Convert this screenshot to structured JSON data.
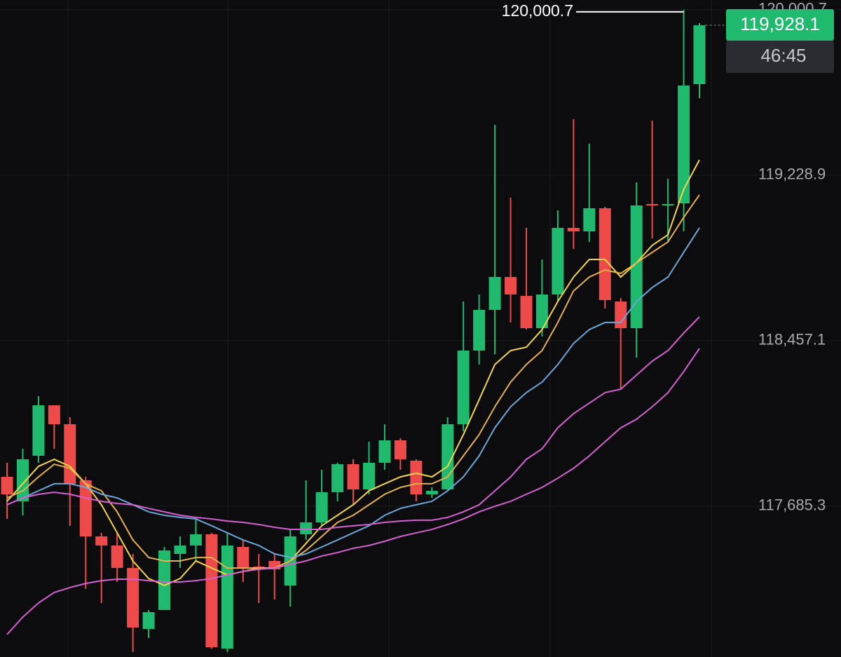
{
  "chart_data": {
    "type": "candlestick",
    "ylim": [
      116982,
      120046
    ],
    "yticks": [
      {
        "value": 117685.3,
        "label": "117,685.3"
      },
      {
        "value": 118457.1,
        "label": "118,457.1"
      },
      {
        "value": 119228.9,
        "label": "119,228.9"
      },
      {
        "value": 120000.7,
        "label": "120,000.7"
      }
    ],
    "grid": true,
    "up_color": "#1fba6e",
    "down_color": "#ef4a4a",
    "open": [
      117822.4,
      117708.0,
      117920.5,
      118155.9,
      118067.7,
      117806.1,
      117544.5,
      117501.9,
      117397.3,
      117112.8,
      117201.1,
      117462.7,
      117501.9,
      117554.3,
      117021.3,
      117495.4,
      117403.8,
      117430.0,
      117315.6,
      117554.3,
      117609.9,
      117750.5,
      117881.3,
      117763.5,
      117887.8,
      117992.4,
      117897.6,
      117740.6,
      117763.5,
      118067.7,
      118411.0,
      118600.7,
      118754.4,
      118666.1,
      118515.6,
      118672.6,
      118983.3,
      118966.9,
      119074.8,
      118639.9,
      118515.6,
      119094.4,
      119087.9,
      119097.7,
      119653.6
    ],
    "high": [
      117887.8,
      117953.2,
      118198.5,
      118155.9,
      118100.4,
      117822.4,
      117560.8,
      117560.8,
      117462.7,
      117201.1,
      117495.4,
      117544.5,
      117626.2,
      117560.8,
      117560.8,
      117528.1,
      117462.7,
      117462.7,
      117577.2,
      117806.1,
      117855.1,
      117887.8,
      117904.2,
      117985.9,
      118067.7,
      118002.3,
      117904.2,
      117773.4,
      118100.4,
      118639.9,
      118672.6,
      119463.9,
      119123.9,
      118983.3,
      118836.1,
      119065.0,
      119490.1,
      119375.7,
      119081.4,
      118656.3,
      119195.8,
      119483.6,
      119212.2,
      120000.7,
      119938.1
    ],
    "low": [
      117626.2,
      117642.6,
      117887.8,
      117953.2,
      117593.5,
      117299.2,
      117233.8,
      117331.9,
      117004.9,
      117070.3,
      117201.1,
      117397.3,
      117430.0,
      117021.3,
      117004.9,
      117331.9,
      117233.8,
      117250.2,
      117217.5,
      117528.1,
      117593.5,
      117708.0,
      117691.6,
      117740.6,
      117855.1,
      117855.1,
      117708.0,
      117724.3,
      117757.0,
      118034.9,
      118345.6,
      118394.7,
      118541.8,
      118509.1,
      118476.4,
      118639.9,
      118885.2,
      118917.9,
      118607.2,
      118231.2,
      118378.3,
      118934.2,
      118917.9,
      118966.9,
      119588.2
    ],
    "close": [
      117740.6,
      117904.2,
      118155.9,
      118067.7,
      117789.7,
      117544.5,
      117501.9,
      117397.3,
      117119.4,
      117191.3,
      117479.1,
      117501.9,
      117554.3,
      117027.8,
      117501.9,
      117397.3,
      117390.8,
      117390.8,
      117544.5,
      117609.9,
      117750.5,
      117881.3,
      117763.5,
      117887.8,
      117992.4,
      117904.2,
      117740.6,
      117757.0,
      118067.7,
      118411.0,
      118600.7,
      118754.4,
      118672.6,
      118515.6,
      118672.6,
      118983.3,
      118966.9,
      119074.8,
      118646.4,
      118515.6,
      119087.9,
      119087.9,
      119094.4,
      119647.1,
      119928.1
    ],
    "series": [
      {
        "color": "#f5d547",
        "values": [
          117708,
          117790,
          117871,
          117904,
          117871,
          117790,
          117692,
          117561,
          117430,
          117348,
          117316,
          117348,
          117430,
          117397,
          117365,
          117381,
          117397,
          117397,
          117430,
          117512,
          117594,
          117643,
          117692,
          117757,
          117790,
          117822,
          117839,
          117822,
          117871,
          118019,
          118182,
          118346,
          118411,
          118427,
          118509,
          118640,
          118754,
          118836,
          118836,
          118754,
          118820,
          118902,
          118951,
          119163,
          119300
        ]
      },
      {
        "color": "#e6b04a",
        "values": [
          117724,
          117757,
          117822,
          117881,
          117862,
          117790,
          117757,
          117659,
          117528,
          117446,
          117430,
          117430,
          117446,
          117446,
          117397,
          117397,
          117397,
          117397,
          117430,
          117479,
          117544,
          117610,
          117643,
          117692,
          117741,
          117773,
          117790,
          117790,
          117822,
          117920,
          118019,
          118149,
          118264,
          118346,
          118411,
          118542,
          118689,
          118754,
          118787,
          118771,
          118820,
          118869,
          118918,
          119032,
          119137
        ]
      },
      {
        "color": "#6aa6d8",
        "values": [
          117692,
          117724,
          117757,
          117790,
          117790,
          117773,
          117741,
          117724,
          117692,
          117659,
          117643,
          117633,
          117626,
          117594,
          117561,
          117528,
          117502,
          117463,
          117446,
          117463,
          117495,
          117528,
          117561,
          117594,
          117643,
          117675,
          117692,
          117708,
          117757,
          117822,
          117920,
          118051,
          118149,
          118215,
          118264,
          118346,
          118444,
          118509,
          118542,
          118542,
          118640,
          118705,
          118754,
          118869,
          118983
        ]
      },
      {
        "color": "#d65fd2",
        "values": [
          117692,
          117724,
          117741,
          117750,
          117741,
          117724,
          117708,
          117698,
          117692,
          117675,
          117659,
          117643,
          117633,
          117626,
          117616,
          117610,
          117600,
          117587,
          117577,
          117577,
          117577,
          117587,
          117594,
          117600,
          117610,
          117616,
          117620,
          117620,
          117633,
          117659,
          117692,
          117757,
          117822,
          117904,
          117953,
          118051,
          118117,
          118166,
          118215,
          118231,
          118297,
          118362,
          118411,
          118493,
          118568
        ]
      },
      {
        "color": "#d65fd2",
        "values": [
          117087,
          117168,
          117234,
          117283,
          117306,
          117325,
          117338,
          117345,
          117345,
          117338,
          117332,
          117332,
          117338,
          117348,
          117365,
          117381,
          117391,
          117397,
          117414,
          117430,
          117453,
          117469,
          117489,
          117502,
          117522,
          117544,
          117561,
          117577,
          117600,
          117626,
          117659,
          117685,
          117708,
          117741,
          117773,
          117816,
          117862,
          117920,
          117986,
          118051,
          118091,
          118149,
          118215,
          118313,
          118421
        ]
      }
    ],
    "max_label": {
      "value": 120000.7,
      "label": "120,000.7"
    },
    "last_price": {
      "value": 119928.1,
      "label": "119,928.1"
    },
    "countdown": "46:45"
  }
}
